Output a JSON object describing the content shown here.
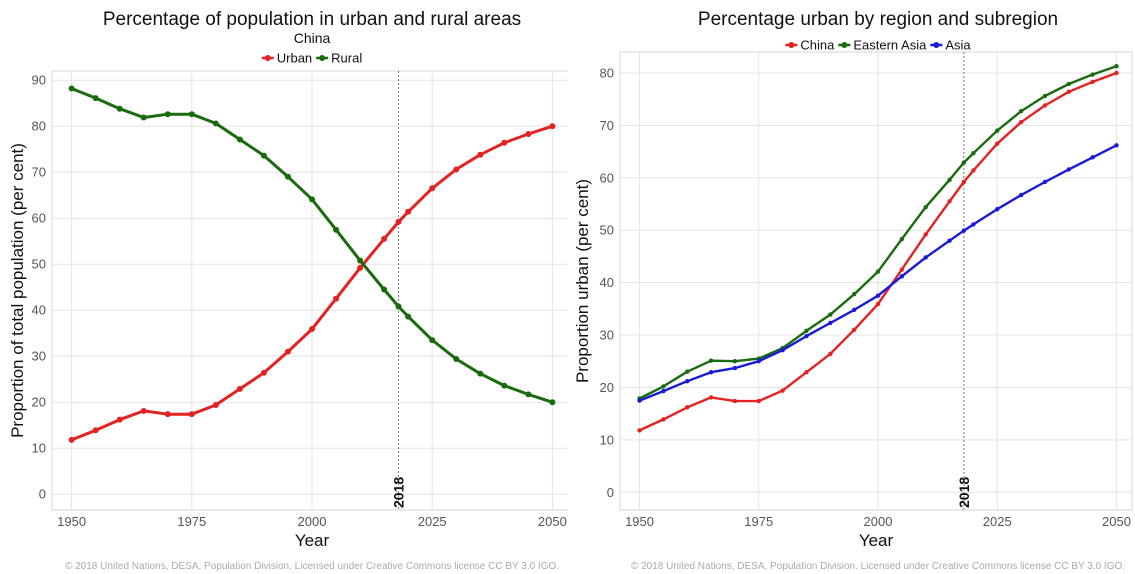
{
  "chart_data": [
    {
      "type": "line",
      "title": "Percentage of population in urban and rural areas",
      "subtitle": "China",
      "xlabel": "Year",
      "ylabel": "Proportion of total population (per cent)",
      "xlim": [
        1948,
        2052
      ],
      "ylim": [
        -3,
        92
      ],
      "xticks": [
        1950,
        1975,
        2000,
        2025,
        2050
      ],
      "yticks": [
        0,
        10,
        20,
        30,
        40,
        50,
        60,
        70,
        80,
        90
      ],
      "grid": true,
      "legend": "top-center",
      "reference_line": {
        "x": 2018,
        "label": "2018"
      },
      "x": [
        1950,
        1955,
        1960,
        1965,
        1970,
        1975,
        1980,
        1985,
        1990,
        1995,
        2000,
        2005,
        2010,
        2015,
        2018,
        2020,
        2025,
        2030,
        2035,
        2040,
        2045,
        2050
      ],
      "series": [
        {
          "name": "Urban",
          "color": "#e32222",
          "values": [
            11.8,
            13.9,
            16.2,
            18.1,
            17.4,
            17.4,
            19.4,
            22.9,
            26.4,
            31.0,
            35.9,
            42.5,
            49.2,
            55.5,
            59.2,
            61.4,
            66.5,
            70.6,
            73.8,
            76.4,
            78.3,
            80.0
          ]
        },
        {
          "name": "Rural",
          "color": "#1a6b0e",
          "values": [
            88.2,
            86.1,
            83.8,
            81.9,
            82.6,
            82.6,
            80.6,
            77.1,
            73.6,
            69.0,
            64.1,
            57.5,
            50.8,
            44.5,
            40.8,
            38.6,
            33.5,
            29.4,
            26.2,
            23.6,
            21.7,
            20.0
          ]
        }
      ],
      "credit": "© 2018 United Nations, DESA, Population Division. Licensed under Creative Commons license CC BY 3.0 IGO."
    },
    {
      "type": "line",
      "title": "Percentage urban by region and subregion",
      "xlabel": "Year",
      "ylabel": "Proportion urban (per cent)",
      "xlim": [
        1948,
        2052
      ],
      "ylim": [
        -3,
        84
      ],
      "xticks": [
        1950,
        1975,
        2000,
        2025,
        2050
      ],
      "yticks": [
        0,
        10,
        20,
        30,
        40,
        50,
        60,
        70,
        80
      ],
      "grid": true,
      "legend": "top-center",
      "reference_line": {
        "x": 2018,
        "label": "2018"
      },
      "x": [
        1950,
        1955,
        1960,
        1965,
        1970,
        1975,
        1980,
        1985,
        1990,
        1995,
        2000,
        2005,
        2010,
        2015,
        2018,
        2020,
        2025,
        2030,
        2035,
        2040,
        2045,
        2050
      ],
      "series": [
        {
          "name": "China",
          "color": "#e32222",
          "values": [
            11.8,
            13.9,
            16.2,
            18.1,
            17.4,
            17.4,
            19.4,
            22.9,
            26.4,
            31.0,
            35.9,
            42.5,
            49.2,
            55.5,
            59.2,
            61.4,
            66.5,
            70.6,
            73.8,
            76.4,
            78.3,
            80.0
          ]
        },
        {
          "name": "Eastern Asia",
          "color": "#1a6b0e",
          "values": [
            17.9,
            20.2,
            23.0,
            25.1,
            25.0,
            25.5,
            27.5,
            30.8,
            33.9,
            37.8,
            42.1,
            48.3,
            54.4,
            59.6,
            62.9,
            64.7,
            69.0,
            72.7,
            75.6,
            77.9,
            79.7,
            81.3
          ]
        },
        {
          "name": "Asia",
          "color": "#1a1ad6",
          "values": [
            17.5,
            19.3,
            21.2,
            22.9,
            23.7,
            25.0,
            27.1,
            29.8,
            32.3,
            34.8,
            37.5,
            41.2,
            44.8,
            48.0,
            49.9,
            51.1,
            54.0,
            56.7,
            59.2,
            61.6,
            63.9,
            66.2
          ]
        }
      ],
      "credit": "© 2018 United Nations, DESA, Population Division. Licensed under Creative Commons license CC BY 3.0 IGO."
    }
  ]
}
